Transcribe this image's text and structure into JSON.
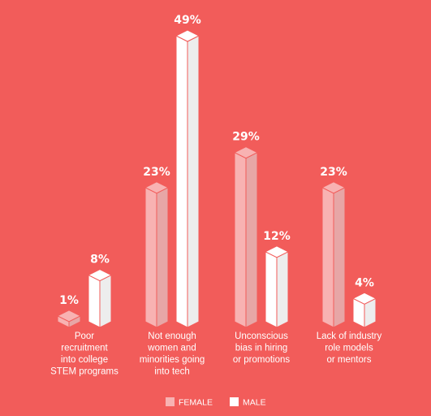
{
  "colors": {
    "background": "#f25c5a",
    "female": "#f8b2b2",
    "male": "#ffffff",
    "edge": "#f25c5a"
  },
  "chart_data": {
    "type": "bar",
    "categories": [
      [
        "Poor",
        "recruitment",
        "into college",
        "STEM programs"
      ],
      [
        "Not enough",
        "women and",
        "minorities going",
        "into tech"
      ],
      [
        "Unconscious",
        "bias in hiring",
        "or promotions"
      ],
      [
        "Lack of industry",
        "role models",
        "or mentors"
      ]
    ],
    "series": [
      {
        "name": "FEMALE",
        "values": [
          1,
          23,
          29,
          23
        ],
        "labels": [
          "1%",
          "23%",
          "29%",
          "23%"
        ]
      },
      {
        "name": "MALE",
        "values": [
          8,
          49,
          12,
          4
        ],
        "labels": [
          "8%",
          "49%",
          "12%",
          "4%"
        ]
      }
    ],
    "ylim": [
      0,
      49
    ],
    "legend_position": "bottom-center",
    "grid": false
  }
}
